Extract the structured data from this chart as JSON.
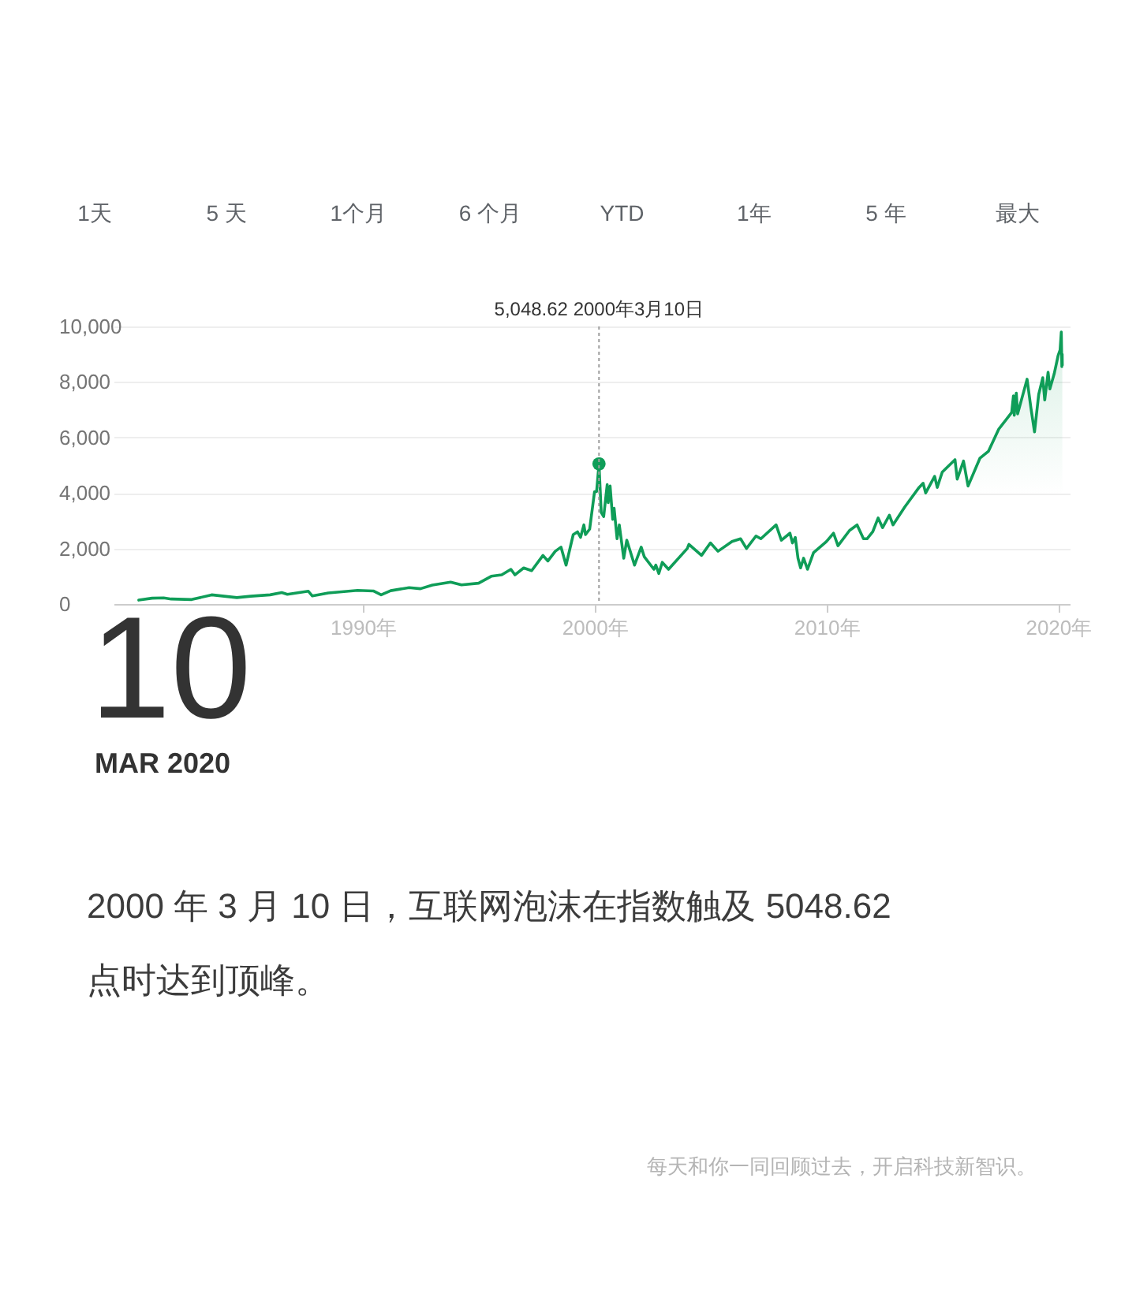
{
  "chart_data": {
    "type": "area",
    "x": [
      "1980-05-01",
      "1980-11-28",
      "1981-05-29",
      "1981-09-25",
      "1982-08-13",
      "1983-06-24",
      "1984-07-25",
      "1985-03-01",
      "1985-12-31",
      "1986-07-03",
      "1986-09-29",
      "1987-08-26",
      "1987-10-28",
      "1988-07-06",
      "1989-10-09",
      "1990-06-15",
      "1990-10-16",
      "1991-03-15",
      "1991-12-31",
      "1992-06-26",
      "1992-12-31",
      "1993-10-15",
      "1994-04-04",
      "1994-12-30",
      "1995-07-17",
      "1995-12-29",
      "1996-05-22",
      "1996-07-24",
      "1996-12-09",
      "1997-04-14",
      "1997-10-09",
      "1997-12-26",
      "1998-04-21",
      "1998-07-20",
      "1998-10-08",
      "1999-01-29",
      "1999-04-07",
      "1999-05-24",
      "1999-07-16",
      "1999-08-10",
      "1999-10-15",
      "1999-12-31",
      "2000-02-01",
      "2000-03-10",
      "2000-04-14",
      "2000-05-23",
      "2000-07-17",
      "2000-08-02",
      "2000-09-01",
      "2000-10-12",
      "2000-11-03",
      "2000-12-20",
      "2001-01-24",
      "2001-04-04",
      "2001-05-22",
      "2001-09-21",
      "2002-01-04",
      "2002-02-22",
      "2002-07-23",
      "2002-08-22",
      "2002-10-09",
      "2002-12-02",
      "2003-03-11",
      "2003-12-31",
      "2004-01-26",
      "2004-08-12",
      "2004-12-30",
      "2005-04-28",
      "2005-12-05",
      "2006-04-19",
      "2006-07-21",
      "2006-12-18",
      "2007-03-05",
      "2007-10-31",
      "2008-01-22",
      "2008-06-05",
      "2008-07-15",
      "2008-08-28",
      "2008-10-10",
      "2008-11-20",
      "2009-01-06",
      "2009-03-09",
      "2009-06-12",
      "2009-12-31",
      "2010-04-23",
      "2010-07-02",
      "2010-12-31",
      "2011-04-29",
      "2011-08-08",
      "2011-10-03",
      "2011-12-31",
      "2012-03-26",
      "2012-06-04",
      "2012-09-19",
      "2012-11-15",
      "2013-05-21",
      "2013-12-31",
      "2014-03-05",
      "2014-04-14",
      "2014-09-02",
      "2014-10-13",
      "2014-12-31",
      "2015-07-20",
      "2015-08-24",
      "2015-12-01",
      "2016-02-11",
      "2016-08-15",
      "2016-12-27",
      "2017-06-08",
      "2017-12-29",
      "2018-01-26",
      "2018-02-08",
      "2018-03-12",
      "2018-04-02",
      "2018-08-29",
      "2018-10-29",
      "2018-12-24",
      "2019-02-28",
      "2019-05-03",
      "2019-06-03",
      "2019-07-26",
      "2019-08-23",
      "2019-10-31",
      "2019-12-31",
      "2020-01-31",
      "2020-02-19",
      "2020-02-28",
      "2020-03-04",
      "2020-03-06"
    ],
    "series": [
      {
        "color": "#0f9d58",
        "values": [
          140,
          210,
          220,
          180,
          160,
          330,
          230,
          280,
          330,
          410,
          350,
          460,
          290,
          400,
          490,
          470,
          330,
          480,
          590,
          550,
          680,
          790,
          690,
          750,
          1000,
          1050,
          1250,
          1050,
          1300,
          1200,
          1750,
          1550,
          1900,
          2050,
          1400,
          2500,
          2600,
          2400,
          2850,
          2500,
          2700,
          4050,
          4050,
          5048.62,
          3300,
          3150,
          4300,
          3650,
          4250,
          3050,
          3450,
          2350,
          2850,
          1650,
          2300,
          1400,
          2050,
          1700,
          1250,
          1400,
          1100,
          1500,
          1250,
          2000,
          2150,
          1750,
          2200,
          1900,
          2250,
          2350,
          2000,
          2450,
          2350,
          2850,
          2300,
          2550,
          2200,
          2400,
          1650,
          1300,
          1650,
          1250,
          1850,
          2250,
          2550,
          2100,
          2650,
          2850,
          2350,
          2350,
          2600,
          3100,
          2750,
          3200,
          2850,
          3500,
          4200,
          4350,
          4000,
          4600,
          4200,
          4750,
          5200,
          4500,
          5150,
          4250,
          5250,
          5500,
          6300,
          6900,
          7500,
          6800,
          7600,
          6850,
          8100,
          7050,
          6200,
          7550,
          8150,
          7350,
          8350,
          7750,
          8300,
          8950,
          9150,
          9800,
          8550,
          9000,
          8600
        ]
      },
      {
        "type": "scatter",
        "marker": "circle",
        "color": "#0f9d58",
        "x": [
          "2000-03-10"
        ],
        "values": [
          5048.62
        ]
      }
    ],
    "xlim": [
      "1979-04",
      "2020-07"
    ],
    "ylim": [
      0,
      10000
    ],
    "xticks": [
      {
        "value": "1990",
        "label": "1990年"
      },
      {
        "value": "2000",
        "label": "2000年"
      },
      {
        "value": "2010",
        "label": "2010年"
      },
      {
        "value": "2020",
        "label": "2020年"
      }
    ],
    "yticks": [
      0,
      {
        "value": 2000,
        "label": "2,000"
      },
      {
        "value": 4000,
        "label": "4,000"
      },
      {
        "value": 6000,
        "label": "6,000"
      },
      {
        "value": 8000,
        "label": "8,000"
      },
      {
        "value": 10000,
        "label": "10,000"
      }
    ],
    "grid": "y",
    "ref_lines": [
      {
        "axis": "x",
        "value": "2000-03-10",
        "label": "5,048.62  2000年3月10日",
        "line_style": "dotted",
        "color": "#9e9e9e"
      }
    ],
    "annotations": [
      "1天",
      "5 天",
      "1个月",
      "6 个月",
      "YTD",
      "1年",
      "5 年",
      "最大",
      "10",
      "MAR 2020",
      "2000 年 3 月 10 日，互联网泡沫在指数触及 5048.62 点时达到顶峰。",
      "每天和你一同回顾过去，开启科技新智识。"
    ]
  }
}
